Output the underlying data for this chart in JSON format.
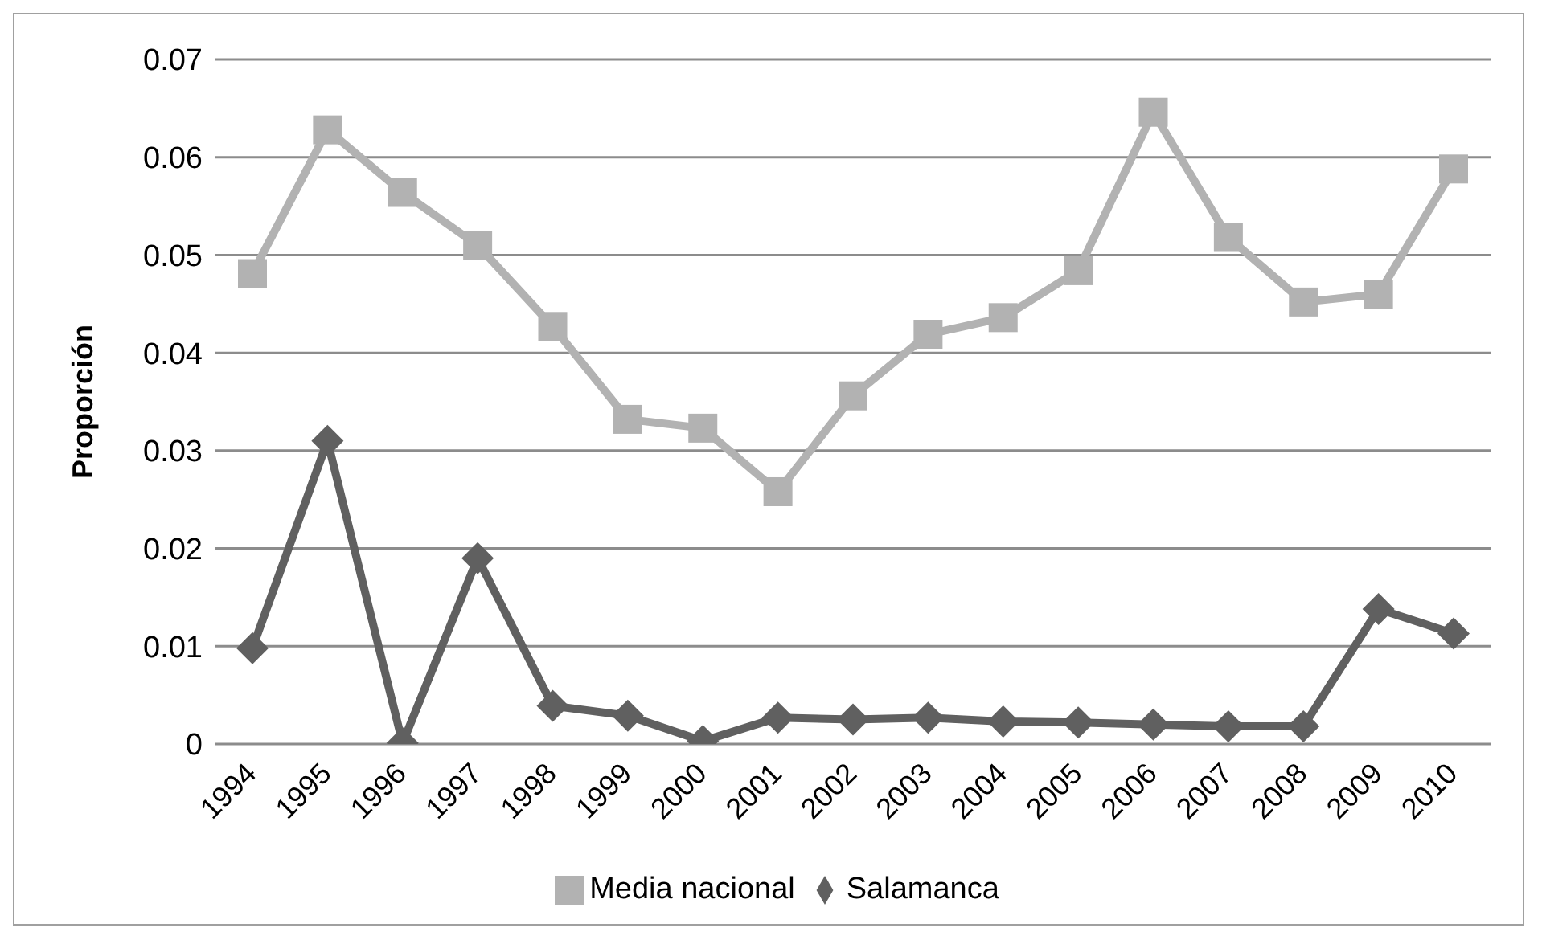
{
  "chart_data": {
    "type": "line",
    "ylabel": "Proporción",
    "categories": [
      "1994",
      "1995",
      "1996",
      "1997",
      "1998",
      "1999",
      "2000",
      "2001",
      "2002",
      "2003",
      "2004",
      "2005",
      "2006",
      "2007",
      "2008",
      "2009",
      "2010"
    ],
    "series": [
      {
        "name": "Salamanca",
        "color": "#606060",
        "marker": "diamond",
        "values": [
          0.0098,
          0.031,
          0.0001,
          0.019,
          0.0039,
          0.0029,
          0.0003,
          0.0027,
          0.0025,
          0.0027,
          0.0023,
          0.0022,
          0.002,
          0.0018,
          0.0018,
          0.0138,
          0.0113
        ]
      },
      {
        "name": "Media nacional",
        "color": "#b2b2b2",
        "marker": "square",
        "values": [
          0.0481,
          0.0628,
          0.0564,
          0.051,
          0.0427,
          0.0332,
          0.0323,
          0.0258,
          0.0356,
          0.0419,
          0.0436,
          0.0484,
          0.0646,
          0.0518,
          0.0452,
          0.046,
          0.0588
        ]
      }
    ],
    "ylim": [
      0,
      0.07
    ],
    "yticks": [
      0,
      0.01,
      0.02,
      0.03,
      0.04,
      0.05,
      0.06,
      0.07
    ],
    "grid": "y",
    "legend": "bottom"
  }
}
